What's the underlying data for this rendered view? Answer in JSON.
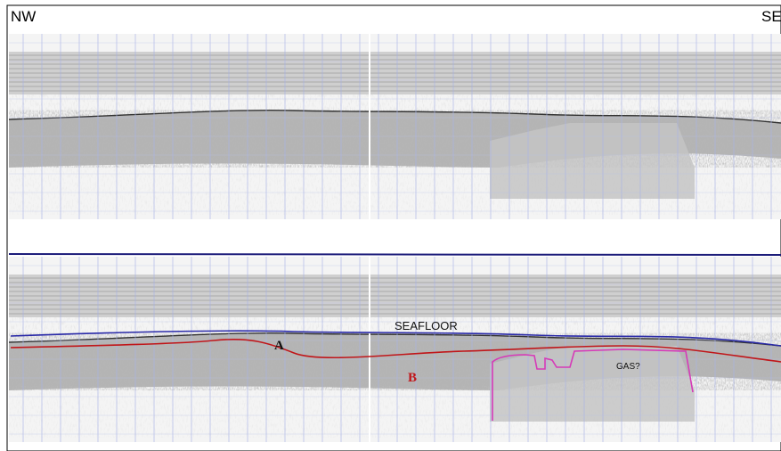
{
  "labels": {
    "left": "NW",
    "right": "SE"
  },
  "annotations": {
    "seafloor": "SEAFLOOR",
    "a": "A",
    "b": "B",
    "gas": "GAS?"
  }
}
